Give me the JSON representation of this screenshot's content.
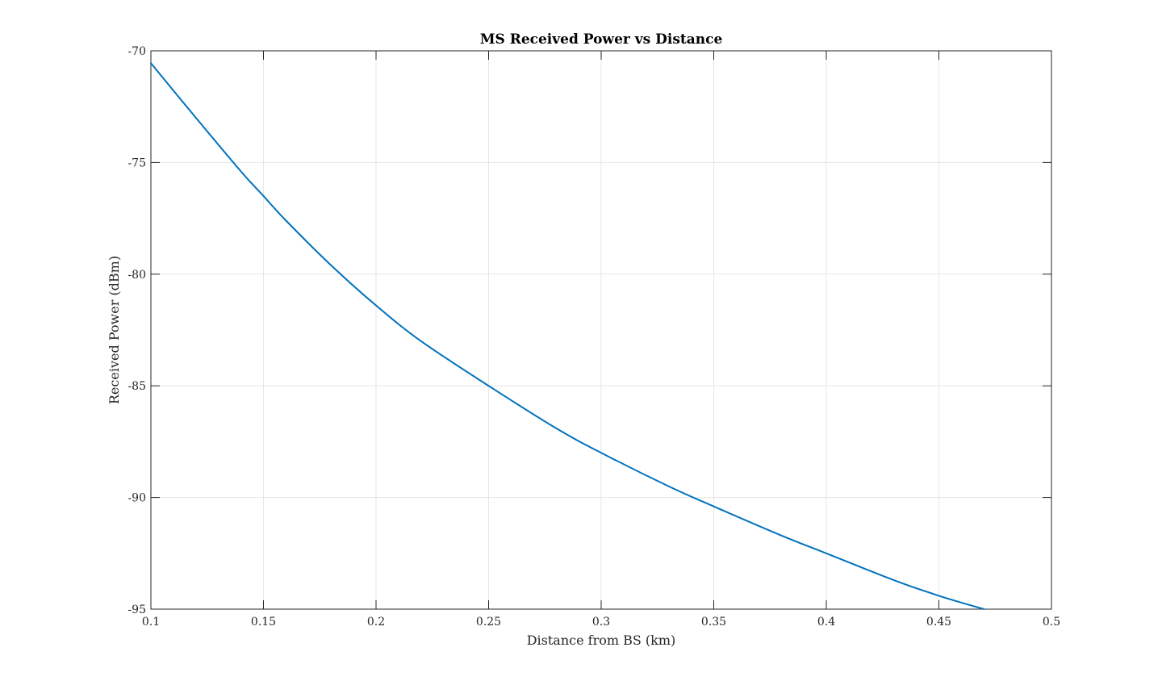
{
  "chart_data": {
    "type": "line",
    "title": "MS Received Power vs Distance",
    "xlabel": "Distance from BS (km)",
    "ylabel": "Received Power (dBm)",
    "xlim": [
      0.1,
      0.5
    ],
    "ylim": [
      -95,
      -70
    ],
    "xticks": [
      0.1,
      0.15,
      0.2,
      0.25,
      0.3,
      0.35,
      0.4,
      0.45,
      0.5
    ],
    "xtick_labels": [
      "0.1",
      "0.15",
      "0.2",
      "0.25",
      "0.3",
      "0.35",
      "0.4",
      "0.45",
      "0.5"
    ],
    "yticks": [
      -70,
      -75,
      -80,
      -85,
      -90,
      -95
    ],
    "ytick_labels": [
      "-70",
      "-75",
      "-80",
      "-85",
      "-90",
      "-95"
    ],
    "grid": true,
    "legend": "none",
    "series": [
      {
        "color": "#0072bd",
        "x": [
          0.1,
          0.12,
          0.14,
          0.15,
          0.16,
          0.18,
          0.2,
          0.22,
          0.25,
          0.28,
          0.3,
          0.33,
          0.35,
          0.38,
          0.4,
          0.43,
          0.45,
          0.47
        ],
        "y": [
          -70.55,
          -73.0,
          -75.4,
          -76.5,
          -77.6,
          -79.6,
          -81.4,
          -83.0,
          -85.0,
          -86.9,
          -88.0,
          -89.5,
          -90.4,
          -91.7,
          -92.5,
          -93.7,
          -94.4,
          -95.0
        ]
      }
    ]
  }
}
